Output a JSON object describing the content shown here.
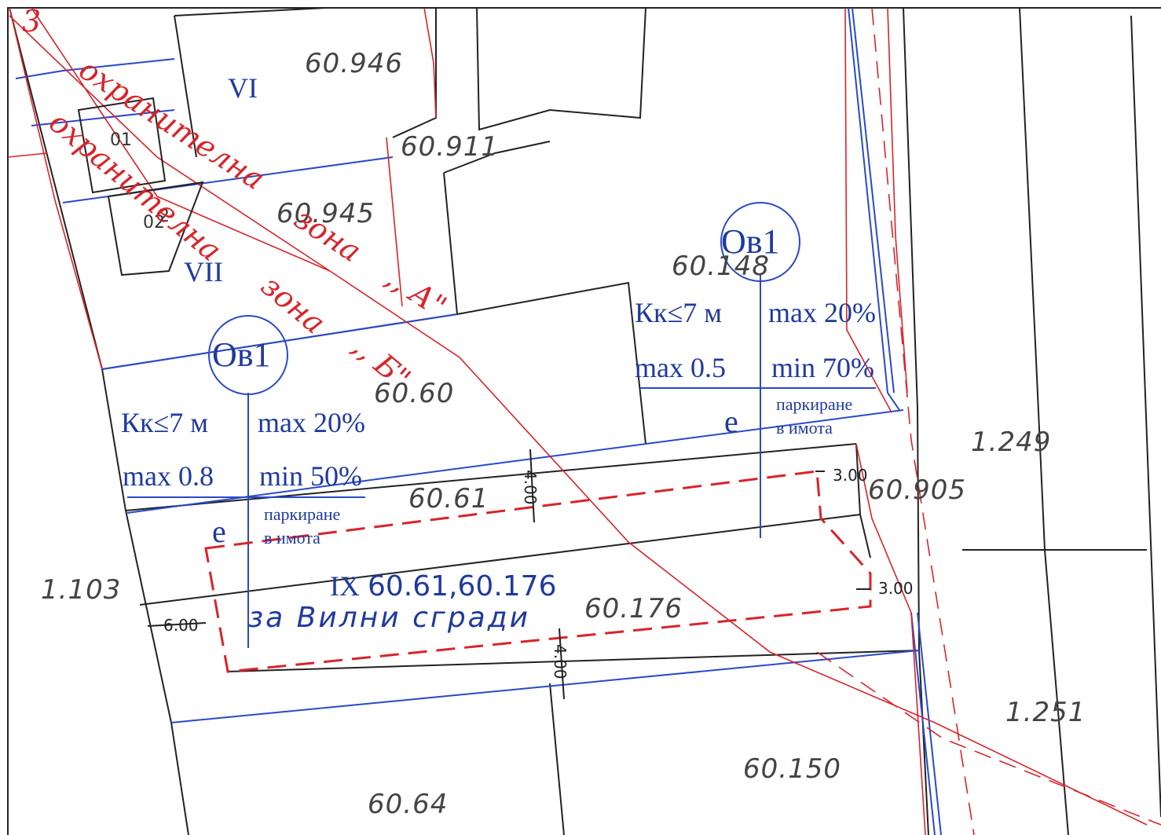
{
  "colors": {
    "background": "#ffffff",
    "parcel_line": "#222222",
    "regulation_line": "#2a49c7",
    "zone_line": "#d8242b",
    "label_blue": "#1f3a9e",
    "label_grey": "#444444"
  },
  "parcels": {
    "p60946": "60.946",
    "p60911": "60.911",
    "p60945": "60.945",
    "p60148": "60.148",
    "p6060": "60.60",
    "p6061": "60.61",
    "p60905": "60.905",
    "p1249": "1.249",
    "p1103": "1.103",
    "p60176": "60.176",
    "p1251": "1.251",
    "p60150": "60.150",
    "p6064": "60.64"
  },
  "blocks": {
    "vi": "VI",
    "vii": "VII",
    "ix": "IX"
  },
  "buildings": {
    "b01": "01",
    "b02": "02",
    "b2": "2",
    "corner": "3"
  },
  "zones": {
    "zone_a_text": "охранителна",
    "zone_a_word": "зона",
    "zone_a_letter": ",, А\"",
    "zone_b_text": "охранителна",
    "zone_b_word": "зона",
    "zone_b_letter": ",, Б\""
  },
  "regulation_left": {
    "index": "Ов1",
    "height": "Кк≤7 м",
    "density": "max 20%",
    "intensity": "max 0.8",
    "green": "min 50%",
    "mode": "е",
    "parking_1": "паркиране",
    "parking_2": "в имота"
  },
  "regulation_right": {
    "index": "Ов1",
    "height": "Кк≤7 м",
    "density": "max 20%",
    "intensity": "max 0.5",
    "green": "min 70%",
    "mode": "е",
    "parking_1": "паркиране",
    "parking_2": "в имота"
  },
  "plot": {
    "numbers": "60.61,60.176",
    "purpose": "за Вилни сгради"
  },
  "dimensions": {
    "d_top": "4.00",
    "d_bottom": "4.00",
    "d_left": "6.00",
    "d_right_top": "3.00",
    "d_right_bottom": "3.00"
  }
}
